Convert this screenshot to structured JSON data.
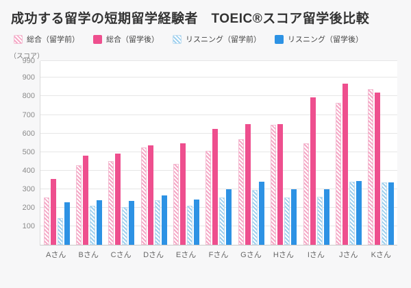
{
  "title": "成功する留学の短期留学経験者　TOEIC®スコア留学後比較",
  "y_axis_unit": "（スコア）",
  "chart_data": {
    "type": "bar",
    "title": "成功する留学の短期留学経験者　TOEIC®スコア留学後比較",
    "xlabel": "",
    "ylabel": "スコア",
    "ylim": [
      0,
      990
    ],
    "yticks": [
      100,
      200,
      300,
      400,
      500,
      600,
      700,
      800,
      900,
      990
    ],
    "grid": true,
    "legend_position": "top",
    "categories": [
      "Aさん",
      "Bさん",
      "Cさん",
      "Dさん",
      "Eさん",
      "Fさん",
      "Gさん",
      "Hさん",
      "Iさん",
      "Jさん",
      "Kさん"
    ],
    "series": [
      {
        "name": "総合（留学前）",
        "style": "pink-hatched",
        "values": [
          255,
          430,
          450,
          525,
          435,
          505,
          570,
          645,
          545,
          765,
          840
        ]
      },
      {
        "name": "総合（留学後）",
        "style": "pink-solid",
        "values": [
          355,
          480,
          490,
          535,
          545,
          625,
          650,
          650,
          795,
          870,
          820
        ]
      },
      {
        "name": "リスニング（留学前）",
        "style": "blue-hatched",
        "values": [
          145,
          210,
          205,
          240,
          210,
          255,
          295,
          255,
          260,
          340,
          335
        ]
      },
      {
        "name": "リスニング（留学後）",
        "style": "blue-solid",
        "values": [
          230,
          240,
          235,
          265,
          245,
          300,
          340,
          300,
          300,
          345,
          335
        ]
      }
    ],
    "colors": {
      "pink_solid": "#ee4f8e",
      "pink_hatch": "#f5a8c6",
      "blue_solid": "#2d92e4",
      "blue_hatch": "#9fd0ee",
      "gridline": "#e6e6e6"
    }
  }
}
